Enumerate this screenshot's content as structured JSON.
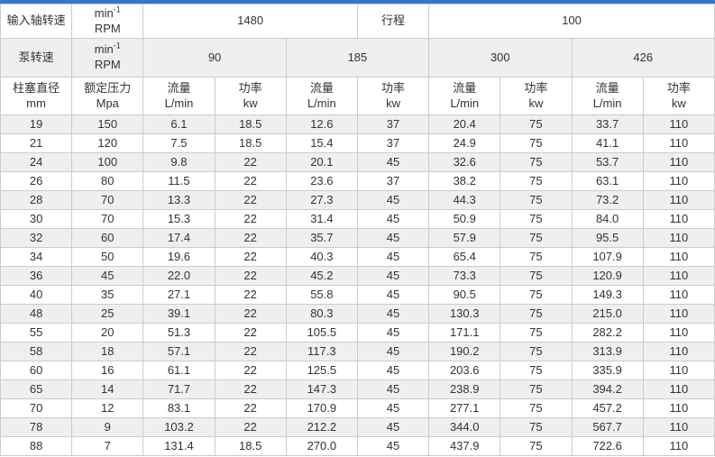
{
  "accent_color": "#3a78b7",
  "table": {
    "unit": {
      "base": "min",
      "sup": "-1",
      "line2": "RPM"
    },
    "row1": {
      "label": "输入轴转速",
      "value": "1480",
      "label2": "行程",
      "value2": "100"
    },
    "row2": {
      "label": "泵转速",
      "speeds": [
        "90",
        "185",
        "300",
        "426"
      ]
    },
    "headers": {
      "diameter": {
        "line1": "柱塞直径",
        "line2": "mm"
      },
      "pressure": {
        "line1": "额定压力",
        "line2": "Mpa"
      },
      "flow": {
        "line1": "流量",
        "line2": "L/min"
      },
      "power": {
        "line1": "功率",
        "line2": "kw"
      }
    },
    "rows": [
      [
        "19",
        "150",
        "6.1",
        "18.5",
        "12.6",
        "37",
        "20.4",
        "75",
        "33.7",
        "110"
      ],
      [
        "21",
        "120",
        "7.5",
        "18.5",
        "15.4",
        "37",
        "24.9",
        "75",
        "41.1",
        "110"
      ],
      [
        "24",
        "100",
        "9.8",
        "22",
        "20.1",
        "45",
        "32.6",
        "75",
        "53.7",
        "110"
      ],
      [
        "26",
        "80",
        "11.5",
        "22",
        "23.6",
        "37",
        "38.2",
        "75",
        "63.1",
        "110"
      ],
      [
        "28",
        "70",
        "13.3",
        "22",
        "27.3",
        "45",
        "44.3",
        "75",
        "73.2",
        "110"
      ],
      [
        "30",
        "70",
        "15.3",
        "22",
        "31.4",
        "45",
        "50.9",
        "75",
        "84.0",
        "110"
      ],
      [
        "32",
        "60",
        "17.4",
        "22",
        "35.7",
        "45",
        "57.9",
        "75",
        "95.5",
        "110"
      ],
      [
        "34",
        "50",
        "19.6",
        "22",
        "40.3",
        "45",
        "65.4",
        "75",
        "107.9",
        "110"
      ],
      [
        "36",
        "45",
        "22.0",
        "22",
        "45.2",
        "45",
        "73.3",
        "75",
        "120.9",
        "110"
      ],
      [
        "40",
        "35",
        "27.1",
        "22",
        "55.8",
        "45",
        "90.5",
        "75",
        "149.3",
        "110"
      ],
      [
        "48",
        "25",
        "39.1",
        "22",
        "80.3",
        "45",
        "130.3",
        "75",
        "215.0",
        "110"
      ],
      [
        "55",
        "20",
        "51.3",
        "22",
        "105.5",
        "45",
        "171.1",
        "75",
        "282.2",
        "110"
      ],
      [
        "58",
        "18",
        "57.1",
        "22",
        "117.3",
        "45",
        "190.2",
        "75",
        "313.9",
        "110"
      ],
      [
        "60",
        "16",
        "61.1",
        "22",
        "125.5",
        "45",
        "203.6",
        "75",
        "335.9",
        "110"
      ],
      [
        "65",
        "14",
        "71.7",
        "22",
        "147.3",
        "45",
        "238.9",
        "75",
        "394.2",
        "110"
      ],
      [
        "70",
        "12",
        "83.1",
        "22",
        "170.9",
        "45",
        "277.1",
        "75",
        "457.2",
        "110"
      ],
      [
        "78",
        "9",
        "103.2",
        "22",
        "212.2",
        "45",
        "344.0",
        "75",
        "567.7",
        "110"
      ],
      [
        "88",
        "7",
        "131.4",
        "18.5",
        "270.0",
        "45",
        "437.9",
        "75",
        "722.6",
        "110"
      ]
    ]
  }
}
